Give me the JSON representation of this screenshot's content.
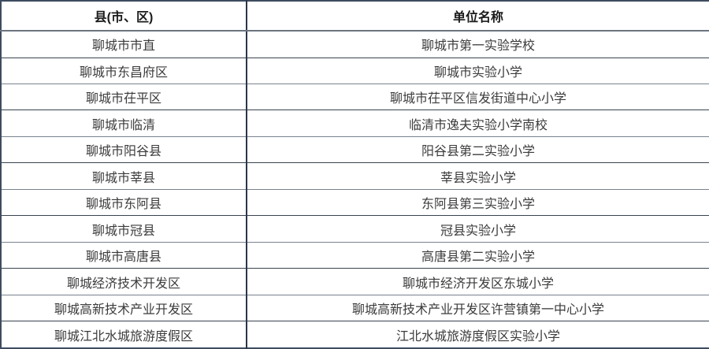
{
  "table": {
    "columns": [
      {
        "label": "县(市、区)"
      },
      {
        "label": "单位名称"
      }
    ],
    "rows": [
      {
        "district": "聊城市市直",
        "unit": "聊城市第一实验学校"
      },
      {
        "district": "聊城市东昌府区",
        "unit": "聊城市实验小学"
      },
      {
        "district": "聊城市茌平区",
        "unit": "聊城市茌平区信发街道中心小学"
      },
      {
        "district": "聊城市临清",
        "unit": "临清市逸夫实验小学南校"
      },
      {
        "district": "聊城市阳谷县",
        "unit": "阳谷县第二实验小学"
      },
      {
        "district": "聊城市莘县",
        "unit": "莘县实验小学"
      },
      {
        "district": "聊城市东阿县",
        "unit": "东阿县第三实验小学"
      },
      {
        "district": "聊城市冠县",
        "unit": "冠县实验小学"
      },
      {
        "district": "聊城市高唐县",
        "unit": "高唐县第二实验小学"
      },
      {
        "district": "聊城经济技术开发区",
        "unit": "聊城市经济开发区东城小学"
      },
      {
        "district": "聊城高新技术产业开发区",
        "unit": "聊城高新技术产业开发区许营镇第一中心小学"
      },
      {
        "district": "聊城江北水城旅游度假区",
        "unit": "江北水城旅游度假区实验小学"
      }
    ]
  },
  "colors": {
    "outer_border": "#3d4c60",
    "inner_border": "#515c6b",
    "center_divider": "#2b3647",
    "header_text": "#1a1a1a",
    "cell_text": "#3b3b3b",
    "background": "#ffffff"
  }
}
